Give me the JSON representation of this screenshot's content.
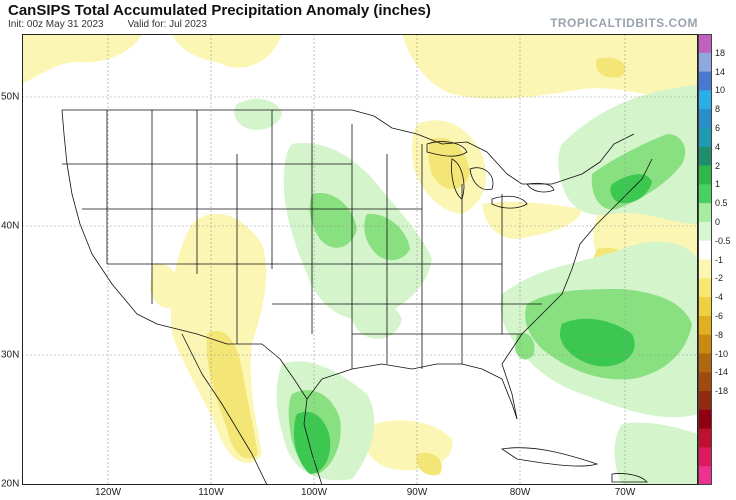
{
  "header": {
    "title": "CanSIPS Total Accumulated Precipitation Anomaly (inches)",
    "init": "Init: 00z May 31 2023",
    "valid": "Valid for: Jul 2023",
    "brand": "TROPICALTIDBITS.COM"
  },
  "map": {
    "lat_labels": [
      "50N",
      "40N",
      "30N",
      "20N"
    ],
    "lon_labels": [
      "120W",
      "110W",
      "100W",
      "90W",
      "80W",
      "70W"
    ],
    "colors": {
      "ocean": "#ffffff",
      "land": "#ffffff",
      "border": "#000000"
    }
  },
  "colorbar": {
    "labels": [
      "18",
      "14",
      "10",
      "8",
      "6",
      "4",
      "2",
      "1",
      "0.5",
      "0",
      "-0.5",
      "-1",
      "-2",
      "-4",
      "-6",
      "-8",
      "-10",
      "-14",
      "-18"
    ],
    "colors": [
      "#c060c0",
      "#8fa8e0",
      "#4a78d0",
      "#2aaee8",
      "#2a8ec8",
      "#209ab0",
      "#1e8e6c",
      "#2db84a",
      "#48d060",
      "#a8eca0",
      "#d8f6d0",
      "#ffffff",
      "#fbf7b0",
      "#f6e870",
      "#eed040",
      "#e0b020",
      "#c88a10",
      "#b06810",
      "#a04a10",
      "#902a10",
      "#900010",
      "#c01030",
      "#e01860",
      "#ee3090"
    ]
  }
}
